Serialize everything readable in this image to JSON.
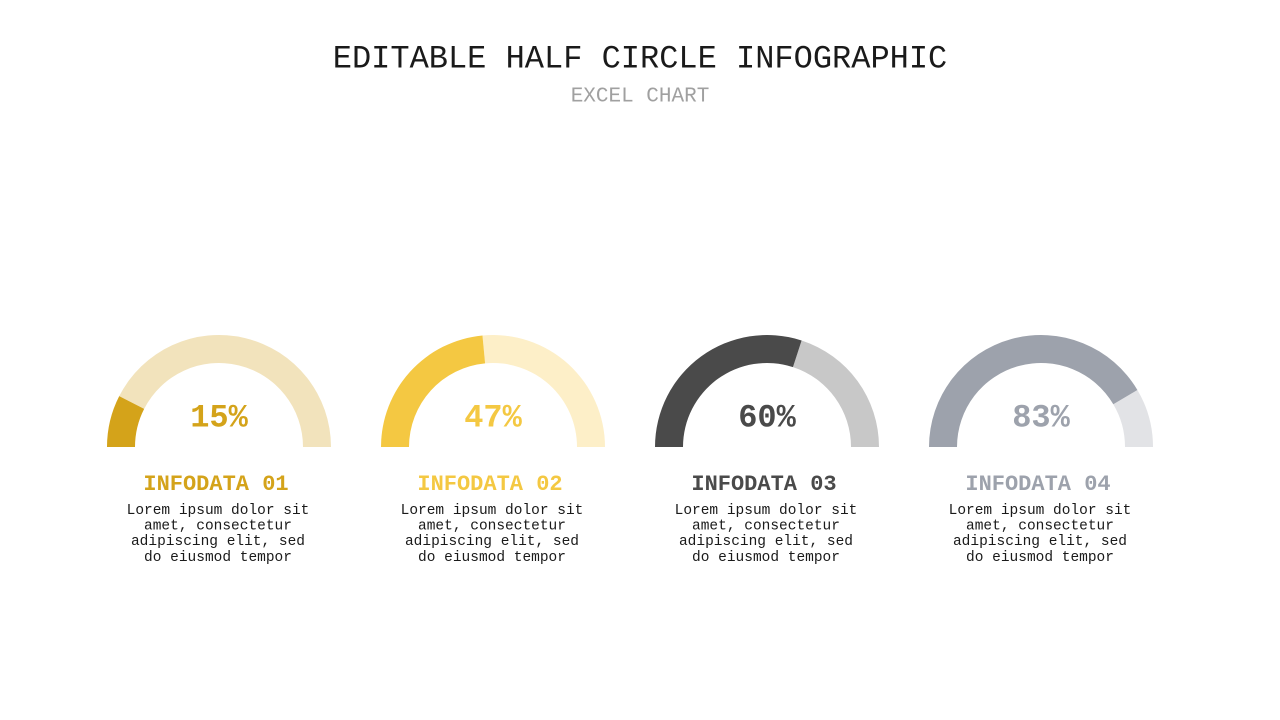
{
  "title": "EDITABLE HALF CIRCLE INFOGRAPHIC",
  "subtitle": "EXCEL CHART",
  "chart_data": [
    {
      "type": "gauge",
      "title": "INFODATA 01",
      "values": [
        15
      ],
      "value_labels": [
        "15%"
      ],
      "ylim": [
        0,
        100
      ],
      "color": "#d4a31a",
      "track_color": "#f2e3bc",
      "description": [
        "Lorem ipsum dolor sit",
        "amet, consectetur",
        "adipiscing elit, sed",
        "do eiusmod tempor"
      ]
    },
    {
      "type": "gauge",
      "title": "INFODATA 02",
      "values": [
        47
      ],
      "value_labels": [
        "47%"
      ],
      "ylim": [
        0,
        100
      ],
      "color": "#f4c842",
      "track_color": "#fdefc8",
      "description": [
        "Lorem ipsum dolor sit",
        "amet, consectetur",
        "adipiscing elit, sed",
        "do eiusmod tempor"
      ]
    },
    {
      "type": "gauge",
      "title": "INFODATA 03",
      "values": [
        60
      ],
      "value_labels": [
        "60%"
      ],
      "ylim": [
        0,
        100
      ],
      "color": "#4a4a4a",
      "track_color": "#c8c8c8",
      "description": [
        "Lorem ipsum dolor sit",
        "amet, consectetur",
        "adipiscing elit, sed",
        "do eiusmod tempor"
      ]
    },
    {
      "type": "gauge",
      "title": "INFODATA 04",
      "values": [
        83
      ],
      "value_labels": [
        "83%"
      ],
      "ylim": [
        0,
        100
      ],
      "color": "#9da2ac",
      "track_color": "#e2e3e6",
      "description": [
        "Lorem ipsum dolor sit",
        "amet, consectetur",
        "adipiscing elit, sed",
        "do eiusmod tempor"
      ]
    }
  ]
}
